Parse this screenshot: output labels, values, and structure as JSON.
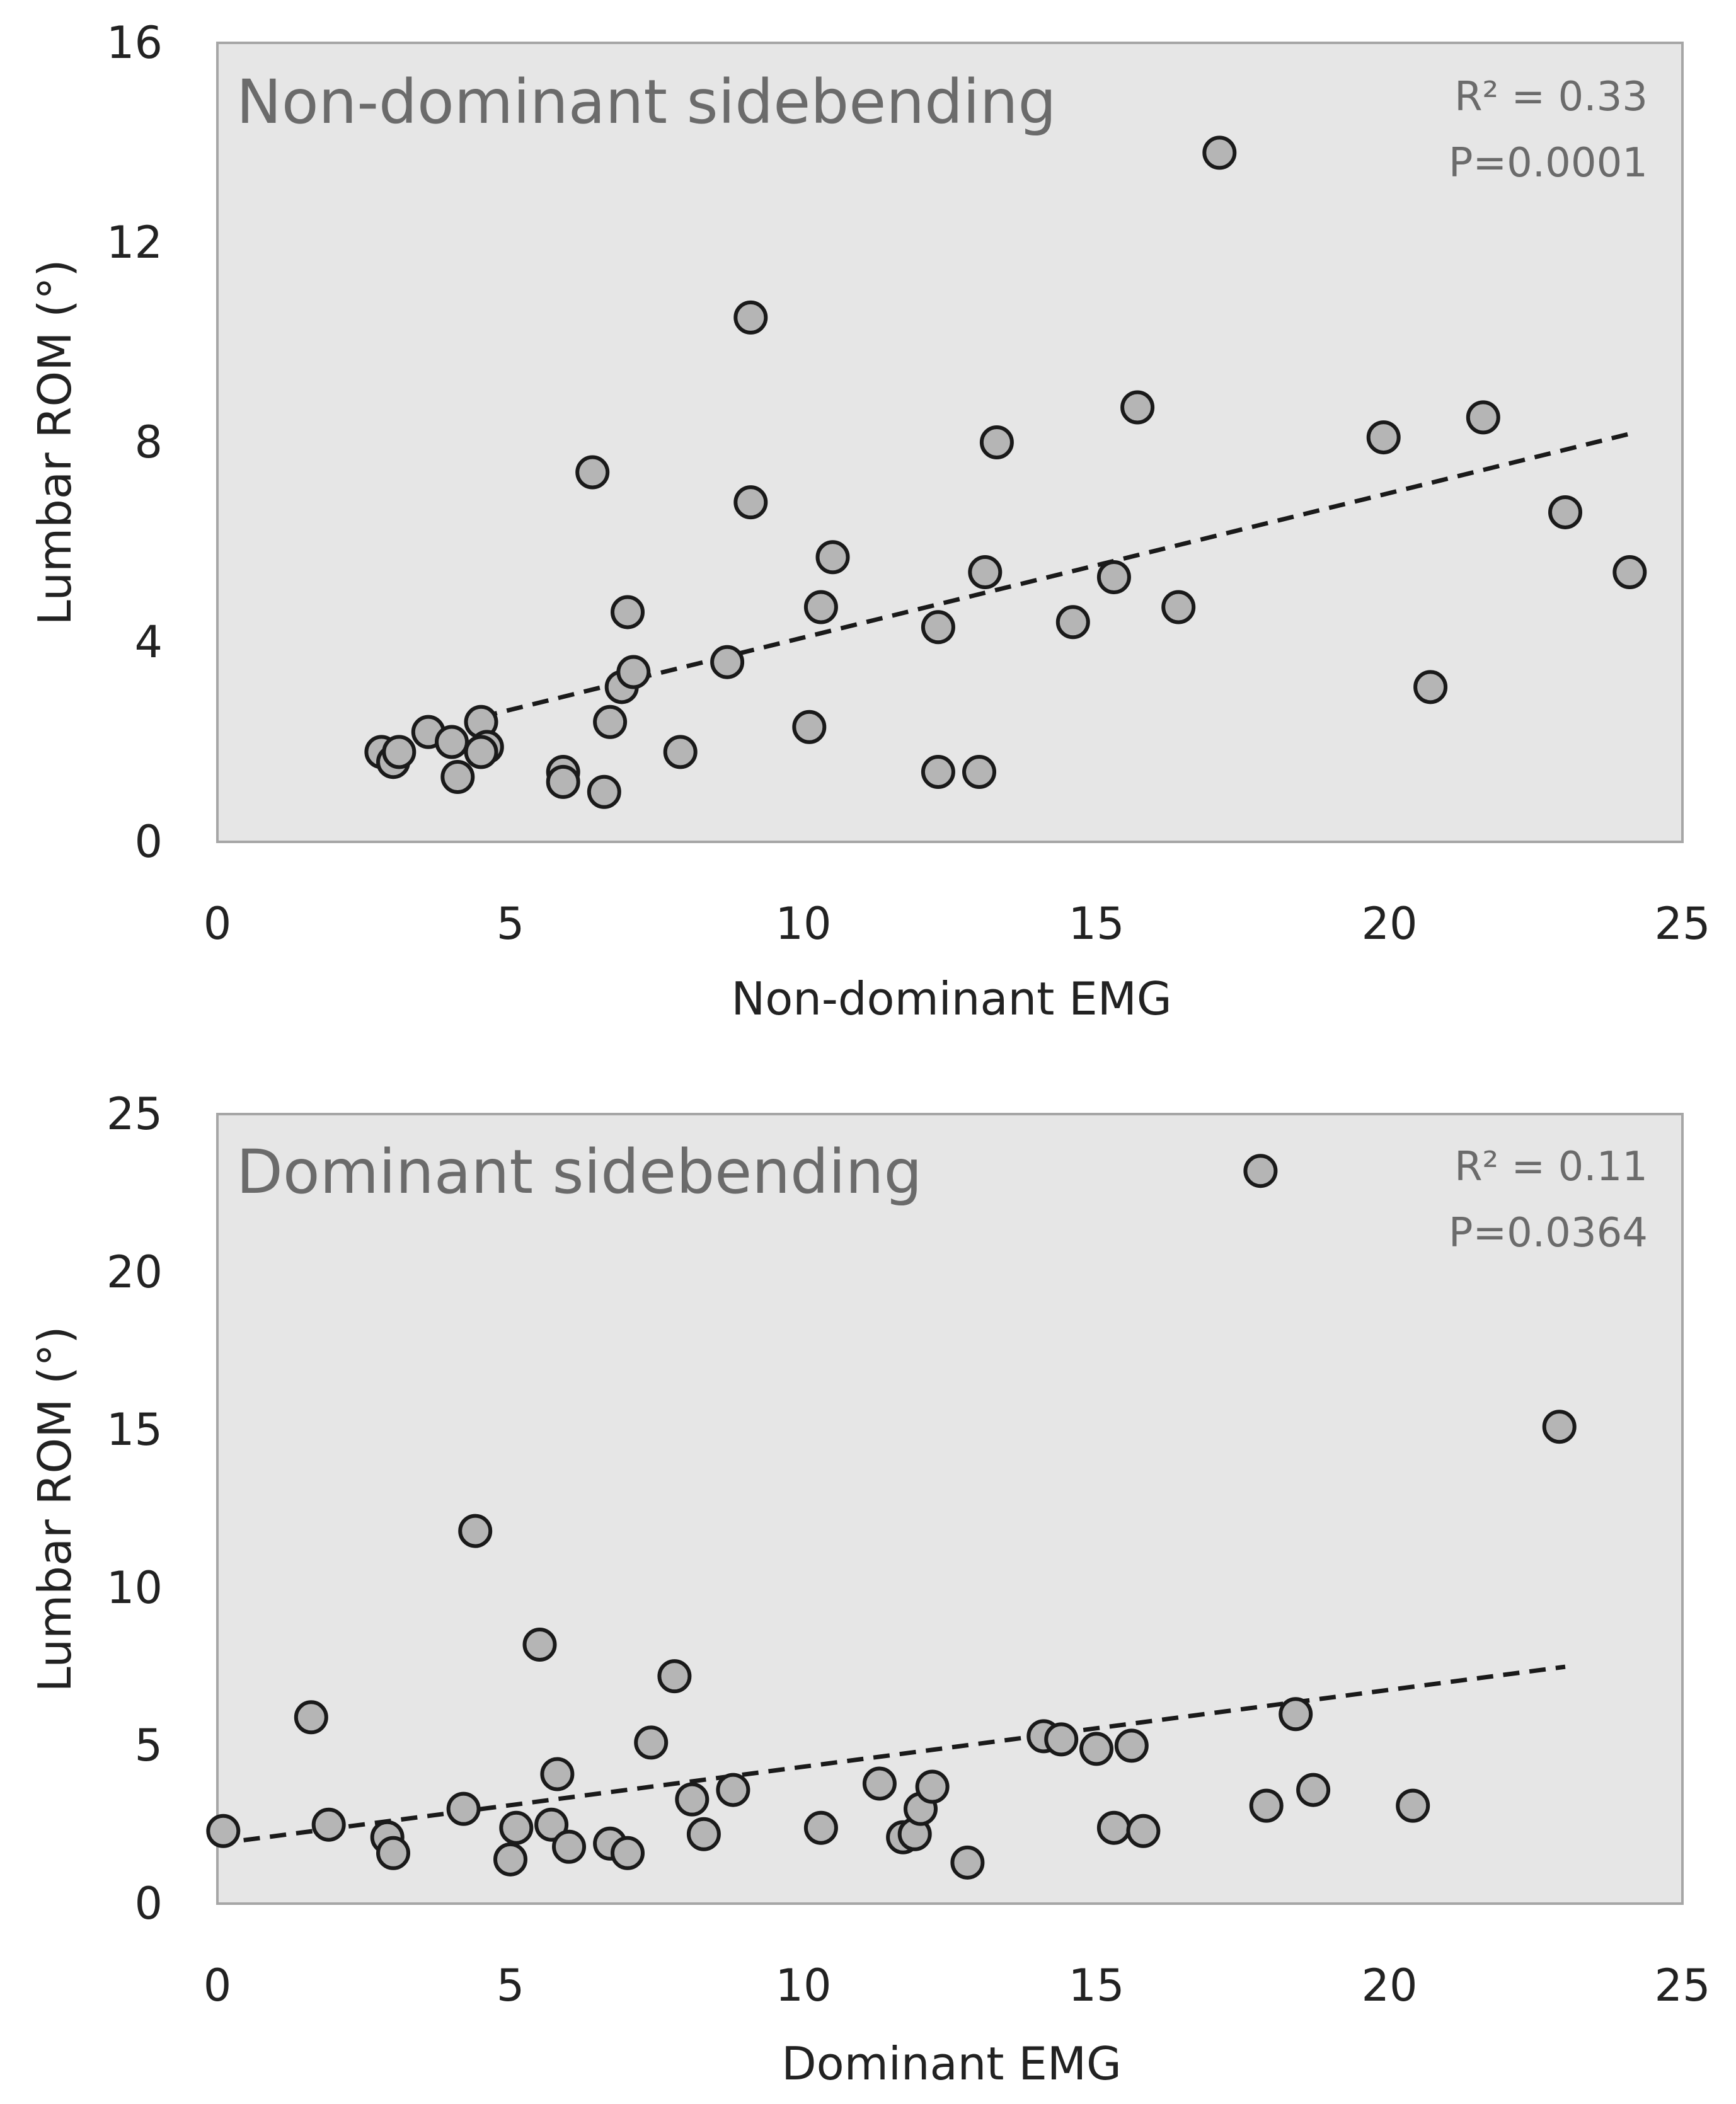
{
  "chart_data": [
    {
      "type": "scatter",
      "title": "Non-dominant sidebending",
      "xlabel": "Non-dominant EMG",
      "ylabel": "Lumbar ROM (°)",
      "xlim": [
        0,
        25
      ],
      "ylim": [
        0,
        16
      ],
      "xticks": [
        "0",
        "5",
        "10",
        "15",
        "20",
        "25"
      ],
      "yticks": [
        "0",
        "4",
        "8",
        "12",
        "16"
      ],
      "r2_label": "R² = 0.33",
      "p_label": "P=0.0001",
      "colors": {
        "background": "#e6e6e6",
        "marker": "#b5b5b5",
        "marker_edge": "#1a1a1a",
        "trend": "#1a1a1a",
        "annotation": "#6b6b6b"
      },
      "trendline": {
        "x": [
          4.5,
          24.2
        ],
        "y": [
          2.5,
          8.2
        ]
      },
      "points": {
        "x": [
          2.8,
          3.0,
          3.1,
          3.6,
          4.0,
          4.1,
          4.5,
          4.6,
          4.5,
          5.9,
          5.9,
          6.4,
          6.6,
          6.7,
          6.9,
          7.0,
          7.1,
          7.9,
          8.7,
          9.1,
          9.1,
          10.1,
          10.3,
          10.5,
          12.3,
          12.3,
          13.0,
          13.1,
          13.3,
          14.6,
          15.3,
          15.7,
          16.4,
          17.1,
          19.9,
          20.7,
          21.6,
          23.0,
          24.1
        ],
        "y": [
          1.8,
          1.6,
          1.8,
          2.2,
          2.0,
          1.3,
          2.4,
          1.9,
          1.8,
          1.4,
          1.2,
          7.4,
          1.0,
          2.4,
          3.1,
          4.6,
          3.4,
          1.8,
          3.6,
          10.5,
          6.8,
          2.3,
          4.7,
          5.7,
          4.3,
          1.4,
          1.4,
          5.4,
          8.0,
          4.4,
          5.3,
          8.7,
          4.7,
          13.8,
          8.1,
          3.1,
          8.5,
          6.6,
          5.4
        ]
      }
    },
    {
      "type": "scatter",
      "title": "Dominant sidebending",
      "xlabel": "Dominant EMG",
      "ylabel": "Lumbar ROM (°)",
      "xlim": [
        0,
        25
      ],
      "ylim": [
        0,
        25
      ],
      "xticks": [
        "0",
        "5",
        "10",
        "15",
        "20",
        "25"
      ],
      "yticks": [
        "0",
        "5",
        "10",
        "15",
        "20",
        "25"
      ],
      "r2_label": "R² = 0.11",
      "p_label": "P=0.0364",
      "colors": {
        "background": "#e6e6e6",
        "marker": "#b5b5b5",
        "marker_edge": "#1a1a1a",
        "trend": "#1a1a1a",
        "annotation": "#6b6b6b"
      },
      "trendline": {
        "x": [
          0.0,
          23.0
        ],
        "y": [
          1.9,
          7.5
        ]
      },
      "points": {
        "x": [
          0.1,
          1.6,
          1.9,
          2.9,
          3.0,
          4.2,
          4.4,
          5.0,
          5.1,
          5.5,
          5.7,
          5.8,
          6.0,
          6.7,
          7.0,
          7.4,
          7.8,
          8.1,
          8.3,
          8.8,
          10.3,
          11.3,
          11.7,
          11.9,
          12.0,
          12.2,
          12.8,
          14.1,
          14.4,
          15.0,
          15.3,
          15.6,
          15.8,
          17.8,
          17.9,
          18.4,
          18.7,
          20.4,
          22.9
        ],
        "y": [
          2.3,
          5.9,
          2.5,
          2.1,
          1.6,
          3.0,
          11.8,
          1.4,
          2.4,
          8.2,
          2.5,
          4.1,
          1.8,
          1.9,
          1.6,
          5.1,
          7.2,
          3.3,
          2.2,
          3.6,
          2.4,
          3.8,
          2.1,
          2.2,
          3.0,
          3.7,
          1.3,
          5.3,
          5.2,
          4.9,
          2.4,
          5.0,
          2.3,
          23.2,
          3.1,
          6.0,
          3.6,
          3.1,
          15.1
        ]
      }
    }
  ]
}
